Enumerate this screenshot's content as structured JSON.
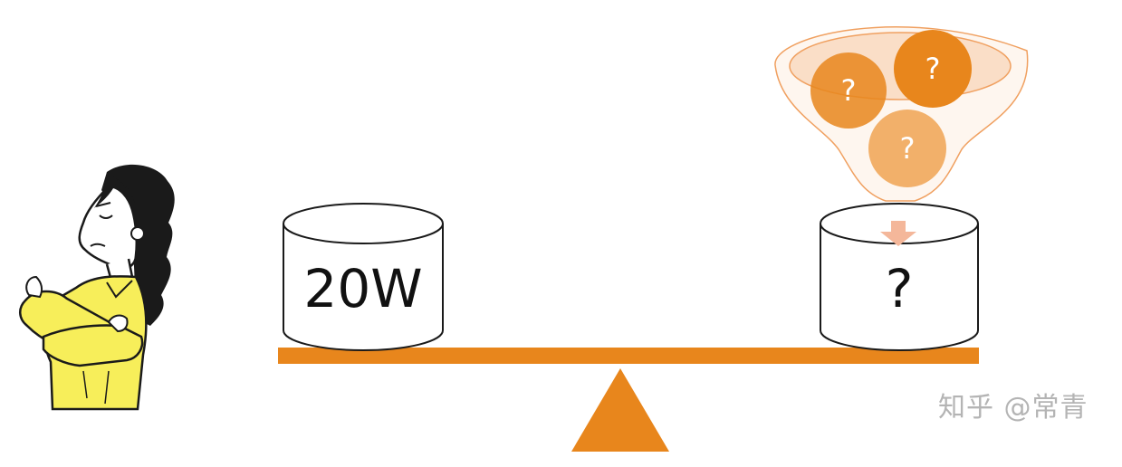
{
  "left_cylinder": {
    "label": "20W"
  },
  "right_cylinder": {
    "label": "?"
  },
  "funnel": {
    "balls": [
      "?",
      "?",
      "?"
    ]
  },
  "watermark": "知乎 @常青",
  "colors": {
    "beam": "#e8861c",
    "fulcrum": "#e8861c",
    "ball_dark": "#e8861c",
    "ball_light": "#f2b06a",
    "funnel_fill": "#f9d9bf",
    "funnel_stroke": "#f0a060",
    "arrow": "#f4b79a",
    "shirt": "#f7ee5a",
    "hair": "#1a1a1a"
  }
}
